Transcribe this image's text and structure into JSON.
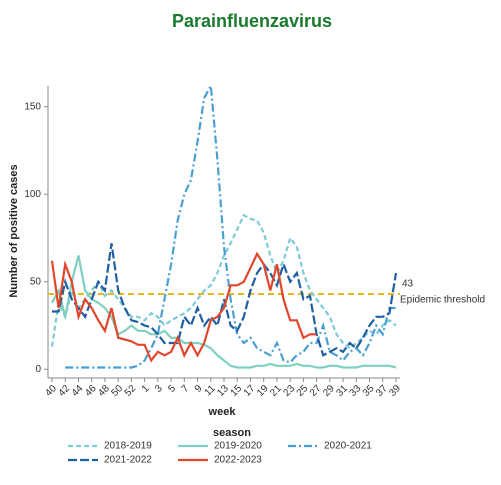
{
  "chart_data": {
    "type": "line",
    "title": "Parainfluenzavirus",
    "x_label": "week",
    "y_label": "Number of positive cases",
    "legend_title": "season",
    "legend_position": "bottom",
    "categories": [
      "40",
      null,
      "42",
      null,
      "44",
      null,
      "46",
      null,
      "48",
      null,
      "50",
      null,
      "52",
      null,
      "1",
      null,
      "3",
      null,
      "5",
      null,
      "7",
      null,
      "9",
      null,
      "11",
      null,
      "13",
      null,
      "15",
      null,
      "17",
      null,
      "19",
      null,
      "21",
      null,
      "23",
      null,
      "25",
      null,
      "27",
      null,
      "29",
      null,
      "31",
      null,
      "33",
      null,
      "35",
      null,
      "37",
      null,
      "39"
    ],
    "ylim": [
      -5,
      163
    ],
    "yticks": [
      0,
      50,
      100,
      150
    ],
    "threshold": {
      "value": 43,
      "text": "Epidemic threshold",
      "color": "#e8b71a"
    },
    "series": [
      {
        "name": "2018-2019",
        "color": "#7ccbd6",
        "dash": "dashed",
        "values": [
          13,
          38,
          30,
          45,
          35,
          40,
          45,
          50,
          42,
          45,
          40,
          35,
          30,
          30,
          28,
          32,
          30,
          25,
          28,
          30,
          32,
          35,
          40,
          45,
          48,
          55,
          65,
          72,
          80,
          88,
          86,
          85,
          78,
          65,
          55,
          62,
          75,
          70,
          55,
          45,
          40,
          35,
          30,
          20,
          15,
          12,
          15,
          18,
          22,
          20,
          25,
          28,
          25
        ]
      },
      {
        "name": "2019-2020",
        "color": "#7fd0c0",
        "dash": "solid",
        "values": [
          38,
          45,
          30,
          50,
          65,
          45,
          40,
          38,
          35,
          30,
          20,
          22,
          25,
          22,
          22,
          20,
          20,
          22,
          18,
          18,
          15,
          15,
          15,
          14,
          12,
          8,
          5,
          2,
          1,
          1,
          1,
          2,
          2,
          3,
          2,
          2,
          2,
          3,
          2,
          2,
          1,
          1,
          2,
          2,
          1,
          1,
          1,
          2,
          2,
          2,
          2,
          2,
          1
        ]
      },
      {
        "name": "2020-2021",
        "color": "#4a9fd2",
        "dash": "dashdot",
        "values": [
          null,
          null,
          1,
          1,
          1,
          1,
          1,
          1,
          1,
          1,
          1,
          1,
          1,
          2,
          5,
          12,
          20,
          40,
          60,
          85,
          100,
          108,
          130,
          155,
          162,
          120,
          70,
          40,
          20,
          15,
          18,
          12,
          10,
          8,
          15,
          5,
          4,
          8,
          10,
          15,
          15,
          25,
          10,
          8,
          5,
          10,
          12,
          8,
          15,
          25,
          20,
          35,
          35
        ]
      },
      {
        "name": "2021-2022",
        "color": "#1f5fa3",
        "dash": "longdash",
        "values": [
          33,
          33,
          50,
          40,
          35,
          30,
          40,
          50,
          45,
          72,
          45,
          35,
          28,
          27,
          25,
          24,
          20,
          15,
          15,
          15,
          30,
          25,
          35,
          25,
          30,
          25,
          40,
          25,
          22,
          30,
          45,
          55,
          60,
          55,
          48,
          60,
          50,
          55,
          40,
          42,
          20,
          8,
          10,
          12,
          10,
          15,
          12,
          18,
          25,
          30,
          30,
          32,
          55
        ]
      },
      {
        "name": "2022-2023",
        "color": "#e2472b",
        "dash": "solid",
        "values": [
          62,
          35,
          60,
          50,
          30,
          40,
          35,
          28,
          22,
          35,
          18,
          17,
          16,
          14,
          14,
          5,
          10,
          8,
          10,
          18,
          8,
          15,
          8,
          15,
          28,
          30,
          35,
          48,
          48,
          50,
          58,
          66,
          60,
          45,
          60,
          40,
          28,
          28,
          18,
          20,
          20,
          null,
          null,
          null,
          null,
          null,
          null,
          null,
          null,
          null,
          null,
          null,
          null
        ]
      }
    ]
  }
}
